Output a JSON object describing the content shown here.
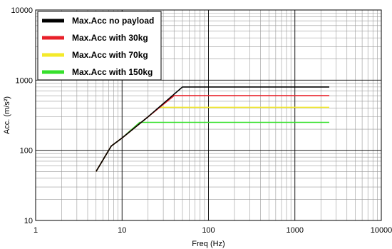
{
  "chart_data": {
    "type": "line",
    "xlabel": "Freq (Hz)",
    "ylabel": "Acc. (m/s²)",
    "x_scale": "log",
    "y_scale": "log",
    "xlim": [
      1,
      10000
    ],
    "ylim": [
      10,
      10000
    ],
    "x_ticks": [
      "1",
      "10",
      "100",
      "1000",
      "10000"
    ],
    "y_ticks": [
      "10",
      "100",
      "1000",
      "10000"
    ],
    "grid": true,
    "legend_position": "top-left",
    "series": [
      {
        "name": "Max.Acc no payload",
        "color": "#000000",
        "points": [
          [
            5,
            50
          ],
          [
            7.5,
            115
          ],
          [
            10,
            150
          ],
          [
            20,
            300
          ],
          [
            50,
            800
          ],
          [
            2500,
            800
          ]
        ]
      },
      {
        "name": "Max.Acc with 30kg",
        "color": "#e8202a",
        "points": [
          [
            5,
            50
          ],
          [
            7.5,
            115
          ],
          [
            10,
            150
          ],
          [
            20,
            300
          ],
          [
            40,
            600
          ],
          [
            2500,
            600
          ]
        ]
      },
      {
        "name": "Max.Acc with 70kg",
        "color": "#f4ea2a",
        "points": [
          [
            5,
            50
          ],
          [
            7.5,
            115
          ],
          [
            10,
            150
          ],
          [
            20,
            300
          ],
          [
            27,
            410
          ],
          [
            2500,
            410
          ]
        ]
      },
      {
        "name": "Max.Acc with 150kg",
        "color": "#36e02c",
        "points": [
          [
            5,
            50
          ],
          [
            7.5,
            115
          ],
          [
            10,
            150
          ],
          [
            16,
            250
          ],
          [
            2500,
            250
          ]
        ]
      }
    ]
  }
}
